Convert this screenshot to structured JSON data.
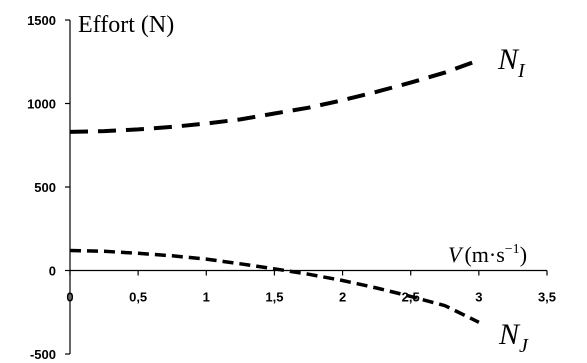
{
  "chart_data": {
    "type": "line",
    "ylabel": "Effort (N)",
    "xlabel": {
      "var": "V",
      "unit_base": "(m·s",
      "unit_exp": "−1",
      "unit_close": ")"
    },
    "xlim": [
      0,
      3.5
    ],
    "ylim": [
      -500,
      1500
    ],
    "x_ticks": [
      0,
      0.5,
      1,
      1.5,
      2,
      2.5,
      3,
      3.5
    ],
    "x_tick_labels": [
      "0",
      "0,5",
      "1",
      "1,5",
      "2",
      "2,5",
      "3",
      "3,5"
    ],
    "y_ticks": [
      -500,
      0,
      500,
      1000,
      1500
    ],
    "y_tick_labels": [
      "-500",
      "0",
      "500",
      "1000",
      "1500"
    ],
    "grid": false,
    "series": [
      {
        "name": "N_I",
        "label_main": "N",
        "label_sub": "I",
        "style": "long-dash",
        "x": [
          0,
          0.25,
          0.5,
          0.75,
          1,
          1.25,
          1.5,
          1.75,
          2,
          2.25,
          2.5,
          2.75,
          3
        ],
        "values": [
          830,
          835,
          845,
          860,
          880,
          905,
          940,
          975,
          1020,
          1070,
          1125,
          1185,
          1260
        ]
      },
      {
        "name": "N_J",
        "label_main": "N",
        "label_sub": "J",
        "style": "short-dash",
        "x": [
          0,
          0.25,
          0.5,
          0.75,
          1,
          1.25,
          1.5,
          1.75,
          2,
          2.25,
          2.5,
          2.75,
          3
        ],
        "values": [
          120,
          115,
          103,
          88,
          68,
          40,
          10,
          -22,
          -60,
          -105,
          -155,
          -210,
          -310
        ]
      }
    ]
  }
}
